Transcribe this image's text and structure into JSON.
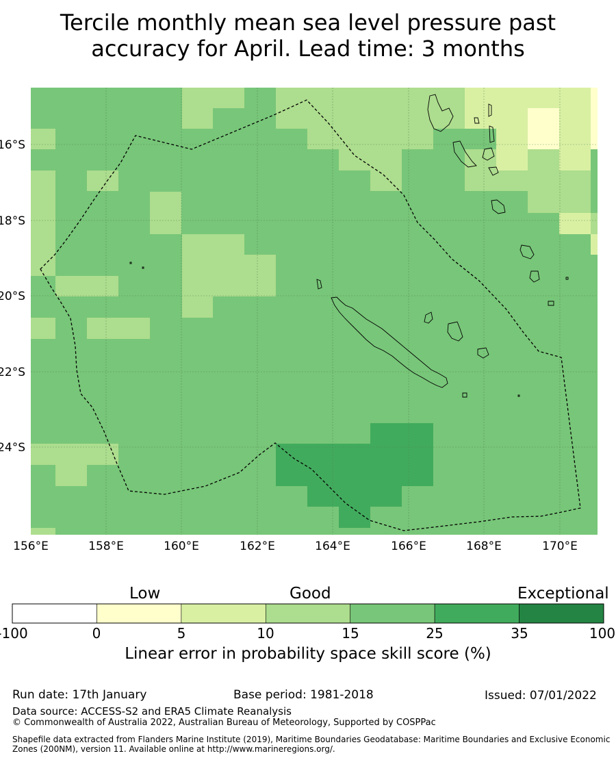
{
  "title": {
    "line1": "Tercile monthly mean sea level pressure past",
    "line2": "accuracy for April. Lead time: 3 months"
  },
  "map": {
    "lon_ticks": [
      "156°E",
      "158°E",
      "160°E",
      "162°E",
      "164°E",
      "166°E",
      "168°E",
      "170°E"
    ],
    "lat_ticks": [
      "16°S",
      "18°S",
      "20°S",
      "22°S",
      "24°S"
    ],
    "lon_range": [
      156,
      171
    ],
    "lat_range": [
      -14.5,
      -26.3
    ],
    "background_category": "15-25",
    "boundary": "EEZ dashed outline (New Caledonia)"
  },
  "colorbar": {
    "headings": [
      "Low",
      "Good",
      "Exceptional"
    ],
    "ticks": [
      "-100",
      "0",
      "5",
      "10",
      "15",
      "25",
      "35",
      "100"
    ],
    "colors": [
      "#ffffff",
      "#ffffcc",
      "#d9f0a3",
      "#addd8e",
      "#78c679",
      "#41ab5d",
      "#238443"
    ],
    "label": "Linear error in probability space skill score (%)"
  },
  "footer": {
    "run_date": "Run date: 17th January",
    "base_period": "Base period: 1981-2018",
    "issued": "Issued: 07/01/2022",
    "data_source": "Data source: ACCESS-S2 and ERA5 Climate Reanalysis",
    "copyright": "© Commonwealth of Australia 2022, Australian Bureau of Meteorology, Supported by COSPPac",
    "shapefile": "Shapefile data extracted from Flanders Marine Institute (2019), Maritime Boundaries Geodatabase: Maritime Boundaries and Exclusive Economic Zones (200NM), version 11. Available online at http://www.marineregions.org/."
  }
}
